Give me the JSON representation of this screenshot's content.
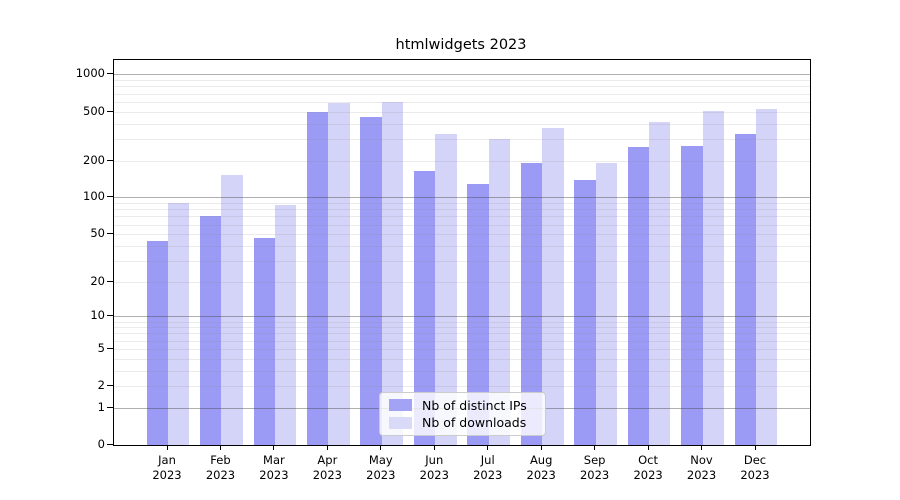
{
  "chart_data": {
    "type": "bar",
    "title": "htmlwidgets 2023",
    "y_scale": "log1p",
    "grid": "horizontal major+minor (log decades), drawn over bars",
    "legend_position": "lower center",
    "year_label": "2023",
    "categories": [
      "Jan",
      "Feb",
      "Mar",
      "Apr",
      "May",
      "Jun",
      "Jul",
      "Aug",
      "Sep",
      "Oct",
      "Nov",
      "Dec"
    ],
    "series": [
      {
        "name": "Nb of distinct IPs",
        "color": "#a3a3f5",
        "fill": "rgba(127,127,243,0.78)",
        "values": [
          44,
          71,
          46,
          500,
          455,
          164,
          130,
          190,
          140,
          256,
          265,
          331
        ]
      },
      {
        "name": "Nb of downloads",
        "color": "#d9d9f8",
        "fill": "rgba(170,170,242,0.5)",
        "values": [
          90,
          152,
          87,
          590,
          600,
          326,
          302,
          365,
          190,
          415,
          508,
          528
        ]
      }
    ],
    "y_ticks": [
      0,
      1,
      2,
      5,
      10,
      20,
      50,
      100,
      200,
      500,
      1000
    ],
    "y_major_gridlines": [
      1,
      10,
      100,
      1000
    ],
    "ylim": [
      0,
      1280
    ],
    "colors": {
      "grid_major": "rgba(64,64,64,0.42)",
      "grid_minor": "rgba(128,128,128,0.16)",
      "spine": "#000000",
      "text": "#000000",
      "legend_border": "#cccccc",
      "legend_background": "rgba(255,255,255,0.8)"
    }
  }
}
